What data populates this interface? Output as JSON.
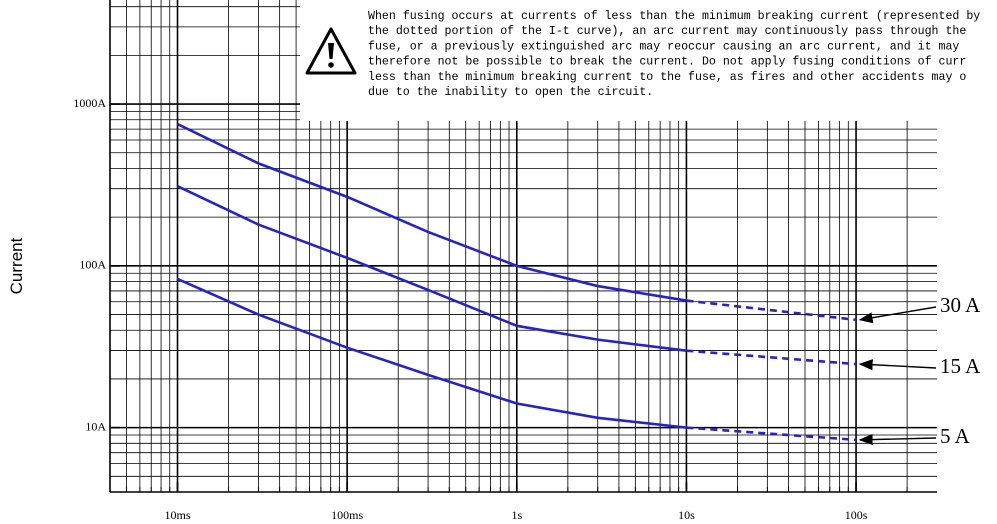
{
  "chart_data": {
    "type": "line",
    "log_x": true,
    "log_y": true,
    "grid": true,
    "ylabel": "Current",
    "xlim": [
      0.004,
      300
    ],
    "ylim": [
      4,
      4400
    ],
    "xticks": [
      {
        "value": 0.01,
        "label": "10ms"
      },
      {
        "value": 0.1,
        "label": "100ms"
      },
      {
        "value": 1,
        "label": "1s"
      },
      {
        "value": 10,
        "label": "10s"
      },
      {
        "value": 100,
        "label": "100s"
      }
    ],
    "yticks": [
      {
        "value": 10,
        "label": "10A"
      },
      {
        "value": 100,
        "label": "100A"
      },
      {
        "value": 1000,
        "label": "1000A"
      }
    ],
    "x": [
      0.01,
      0.03,
      0.1,
      0.3,
      1,
      3,
      10,
      100
    ],
    "series": [
      {
        "name": "30 A",
        "color": "#2424c8",
        "values": [
          753,
          430,
          267,
          162,
          100,
          75,
          61,
          null
        ],
        "dotted_values": [
          null,
          null,
          null,
          null,
          null,
          null,
          61,
          46.4
        ]
      },
      {
        "name": "15 A",
        "color": "#2424c8",
        "values": [
          311,
          180,
          112,
          71,
          42.6,
          35,
          29.9,
          null
        ],
        "dotted_values": [
          null,
          null,
          null,
          null,
          null,
          null,
          29.9,
          24.7
        ]
      },
      {
        "name": "5 A",
        "color": "#2424c8",
        "values": [
          83,
          50,
          31.2,
          21.2,
          14.1,
          11.5,
          10,
          null
        ],
        "dotted_values": [
          null,
          null,
          null,
          null,
          null,
          null,
          10,
          8.4
        ]
      }
    ],
    "note": [
      "When fusing occurs at currents of less than the minimum breaking current (represented by",
      "the dotted portion of the I-t curve), an arc current may continuously pass through the",
      "fuse, or a previously extinguished arc may reoccur causing an arc current, and it may",
      "therefore not be possible to break the current. Do not apply fusing conditions of curr",
      "less than the minimum breaking current to the fuse, as fires and other accidents may o",
      "due to the inability to open the circuit."
    ]
  }
}
